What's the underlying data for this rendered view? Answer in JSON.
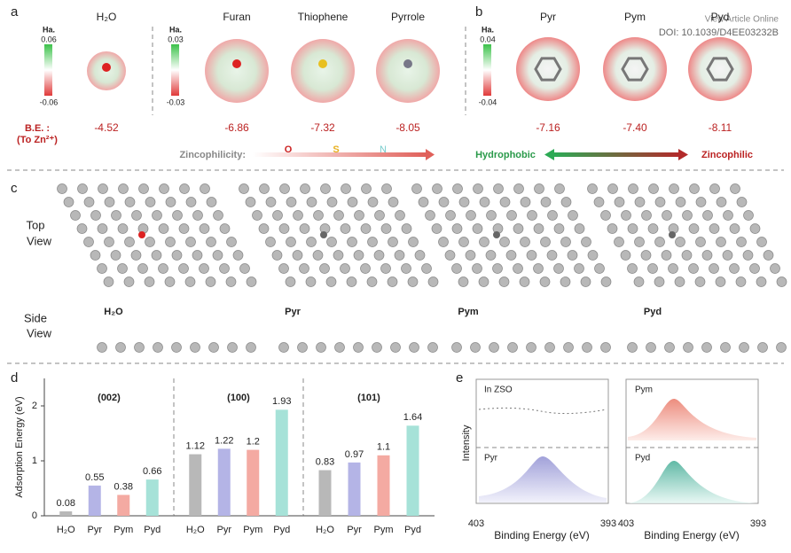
{
  "header": {
    "link": "View Article Online",
    "doi": "DOI: 10.1039/D4EE03232B"
  },
  "panel_a": {
    "letter": "a",
    "molecules": [
      "H₂O",
      "Furan",
      "Thiophene",
      "Pyrrole"
    ],
    "scale_unit": [
      "Ha.",
      "Ha."
    ],
    "scale_max": [
      "0.06",
      "0.03"
    ],
    "scale_min": [
      "-0.06",
      "-0.03"
    ],
    "be_label": "B.E. :",
    "be_sub": "(To Zn²⁺)",
    "be_values": [
      "-4.52",
      "-6.86",
      "-7.32",
      "-8.05"
    ],
    "legend": "Zincophilicity:",
    "atoms": [
      "O",
      "S",
      "N"
    ]
  },
  "panel_b": {
    "letter": "b",
    "molecules": [
      "Pyr",
      "Pym",
      "Pyd"
    ],
    "scale_unit": "Ha.",
    "scale_max": "0.04",
    "scale_min": "-0.04",
    "be_values": [
      "-7.16",
      "-7.40",
      "-8.11"
    ],
    "left": "Hydrophobic",
    "right": "Zincophilic"
  },
  "panel_c": {
    "letter": "c",
    "top": [
      "Top",
      "View"
    ],
    "side": [
      "Side",
      "View"
    ],
    "labels": [
      "H₂O",
      "Pyr",
      "Pym",
      "Pyd"
    ]
  },
  "panel_d": {
    "letter": "d"
  },
  "chart_data": [
    {
      "type": "bar",
      "title": "(002)",
      "ylabel": "Adsorption Energy (eV)",
      "categories": [
        "H₂O",
        "Pyr",
        "Pym",
        "Pyd"
      ],
      "values": [
        0.08,
        0.55,
        0.38,
        0.66
      ],
      "colors": [
        "#b8b8b8",
        "#b4b4e6",
        "#f4aaa2",
        "#a6e2d8"
      ],
      "ylim": [
        0,
        2.5
      ],
      "yticks": [
        0,
        1,
        2
      ]
    },
    {
      "type": "bar",
      "title": "(100)",
      "categories": [
        "H₂O",
        "Pyr",
        "Pym",
        "Pyd"
      ],
      "values": [
        1.12,
        1.22,
        1.2,
        1.93
      ],
      "colors": [
        "#b8b8b8",
        "#b4b4e6",
        "#f4aaa2",
        "#a6e2d8"
      ],
      "ylim": [
        0,
        2.5
      ]
    },
    {
      "type": "bar",
      "title": "(101)",
      "categories": [
        "H₂O",
        "Pyr",
        "Pym",
        "Pyd"
      ],
      "values": [
        0.83,
        0.97,
        1.1,
        1.64
      ],
      "colors": [
        "#b8b8b8",
        "#b4b4e6",
        "#f4aaa2",
        "#a6e2d8"
      ],
      "ylim": [
        0,
        2.5
      ]
    }
  ],
  "panel_e": {
    "letter": "e",
    "ylabel": "Intensity",
    "xlabel": [
      "Binding Energy (eV)",
      "Binding Energy (eV)"
    ],
    "xmin": [
      "403",
      "403"
    ],
    "xmax": [
      "393",
      "393"
    ],
    "labels": [
      "In ZSO",
      "Pyr",
      "Pym",
      "Pyd"
    ]
  }
}
